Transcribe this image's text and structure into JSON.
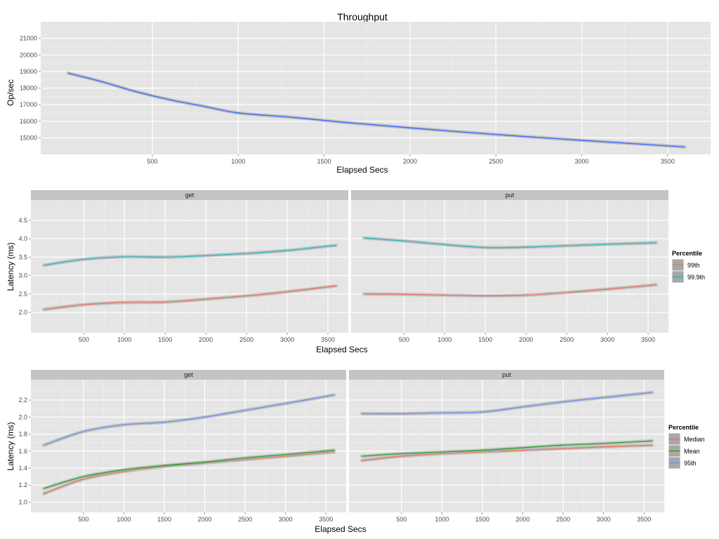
{
  "chart_data": [
    {
      "type": "line",
      "title": "Throughput",
      "xlabel": "Elapsed Secs",
      "ylabel": "Op/sec",
      "xlim": [
        -150,
        3750
      ],
      "ylim": [
        14000,
        22000
      ],
      "x_ticks": [
        500,
        1000,
        1500,
        2000,
        2500,
        3000,
        3500
      ],
      "x_tick_labels": [
        "500",
        "1000",
        "1500",
        "2000",
        "2500",
        "3000",
        "3500"
      ],
      "y_ticks": [
        15000,
        16000,
        17000,
        18000,
        19000,
        20000,
        21000
      ],
      "y_tick_labels": [
        "15000",
        "16000",
        "17000",
        "18000",
        "19000",
        "20000",
        "21000"
      ],
      "grid": true,
      "panels": [
        {
          "name": "",
          "series": [
            {
              "name": "",
              "color": "#3366ff",
              "x": [
                10,
                200,
                400,
                600,
                800,
                1000,
                1300,
                1600,
                2000,
                2500,
                3000,
                3600
              ],
              "y": [
                18900,
                18400,
                17800,
                17300,
                16900,
                16500,
                16250,
                15950,
                15600,
                15200,
                14850,
                14450
              ]
            }
          ]
        }
      ]
    },
    {
      "type": "line",
      "title": "",
      "xlabel": "Elapsed Secs",
      "ylabel": "Latency (ms)",
      "xlim": [
        -150,
        3750
      ],
      "ylim": [
        1.45,
        5.05
      ],
      "x_ticks": [
        500,
        1000,
        1500,
        2000,
        2500,
        3000,
        3500
      ],
      "x_tick_labels": [
        "500",
        "1000",
        "1500",
        "2000",
        "2500",
        "3000",
        "3500"
      ],
      "y_ticks": [
        2.0,
        2.5,
        3.0,
        3.5,
        4.0,
        4.5
      ],
      "y_tick_labels": [
        "2.0",
        "2.5",
        "3.0",
        "3.5",
        "4.0",
        "4.5"
      ],
      "grid": true,
      "legend": {
        "title": "Percentile",
        "position": "right",
        "entries": [
          {
            "label": "99th",
            "color": "#e8725e"
          },
          {
            "label": "99.9th",
            "color": "#2eb5b9"
          }
        ]
      },
      "panels": [
        {
          "name": "get",
          "series": [
            {
              "name": "99th",
              "color": "#e8725e",
              "x": [
                10,
                500,
                1000,
                1500,
                2000,
                2500,
                3000,
                3600
              ],
              "y": [
                2.08,
                2.21,
                2.27,
                2.28,
                2.36,
                2.45,
                2.56,
                2.72
              ]
            },
            {
              "name": "99.9th",
              "color": "#2eb5b9",
              "x": [
                10,
                500,
                1000,
                1500,
                2000,
                2500,
                3000,
                3600
              ],
              "y": [
                3.28,
                3.44,
                3.51,
                3.5,
                3.54,
                3.6,
                3.68,
                3.82
              ]
            }
          ]
        },
        {
          "name": "put",
          "series": [
            {
              "name": "99th",
              "color": "#e8725e",
              "x": [
                10,
                500,
                1000,
                1500,
                2000,
                2500,
                3000,
                3600
              ],
              "y": [
                2.5,
                2.49,
                2.47,
                2.45,
                2.47,
                2.54,
                2.63,
                2.75
              ]
            },
            {
              "name": "99.9th",
              "color": "#2eb5b9",
              "x": [
                10,
                500,
                1000,
                1500,
                2000,
                2500,
                3000,
                3600
              ],
              "y": [
                4.02,
                3.94,
                3.84,
                3.76,
                3.77,
                3.81,
                3.85,
                3.89
              ]
            }
          ]
        }
      ]
    },
    {
      "type": "line",
      "title": "",
      "xlabel": "Elapsed Secs",
      "ylabel": "Latency (ms)",
      "xlim": [
        -150,
        3750
      ],
      "ylim": [
        0.88,
        2.44
      ],
      "x_ticks": [
        500,
        1000,
        1500,
        2000,
        2500,
        3000,
        3500
      ],
      "x_tick_labels": [
        "500",
        "1000",
        "1500",
        "2000",
        "2500",
        "3000",
        "3500"
      ],
      "y_ticks": [
        1.0,
        1.2,
        1.4,
        1.6,
        1.8,
        2.0,
        2.2
      ],
      "y_tick_labels": [
        "1.0",
        "1.2",
        "1.4",
        "1.6",
        "1.8",
        "2.0",
        "2.2"
      ],
      "grid": true,
      "legend": {
        "title": "Percentile",
        "position": "right",
        "entries": [
          {
            "label": "Median",
            "color": "#e8725e"
          },
          {
            "label": "Mean",
            "color": "#22a422"
          },
          {
            "label": "95th",
            "color": "#6e8fef"
          }
        ]
      },
      "panels": [
        {
          "name": "get",
          "series": [
            {
              "name": "Median",
              "color": "#e8725e",
              "x": [
                10,
                500,
                1000,
                1500,
                2000,
                2500,
                3000,
                3600
              ],
              "y": [
                1.1,
                1.27,
                1.36,
                1.42,
                1.46,
                1.5,
                1.54,
                1.59
              ]
            },
            {
              "name": "Mean",
              "color": "#22a422",
              "x": [
                10,
                500,
                1000,
                1500,
                2000,
                2500,
                3000,
                3600
              ],
              "y": [
                1.16,
                1.3,
                1.38,
                1.43,
                1.47,
                1.52,
                1.56,
                1.61
              ]
            },
            {
              "name": "95th",
              "color": "#6e8fef",
              "x": [
                10,
                500,
                1000,
                1500,
                2000,
                2500,
                3000,
                3600
              ],
              "y": [
                1.67,
                1.83,
                1.91,
                1.94,
                2.0,
                2.08,
                2.16,
                2.26
              ]
            }
          ]
        },
        {
          "name": "put",
          "series": [
            {
              "name": "Median",
              "color": "#e8725e",
              "x": [
                10,
                500,
                1000,
                1500,
                2000,
                2500,
                3000,
                3600
              ],
              "y": [
                1.49,
                1.54,
                1.57,
                1.59,
                1.61,
                1.63,
                1.65,
                1.67
              ]
            },
            {
              "name": "Mean",
              "color": "#22a422",
              "x": [
                10,
                500,
                1000,
                1500,
                2000,
                2500,
                3000,
                3600
              ],
              "y": [
                1.54,
                1.57,
                1.59,
                1.61,
                1.64,
                1.67,
                1.69,
                1.72
              ]
            },
            {
              "name": "95th",
              "color": "#6e8fef",
              "x": [
                10,
                500,
                1000,
                1500,
                2000,
                2500,
                3000,
                3600
              ],
              "y": [
                2.04,
                2.04,
                2.05,
                2.06,
                2.12,
                2.18,
                2.23,
                2.29
              ]
            }
          ]
        }
      ]
    }
  ]
}
